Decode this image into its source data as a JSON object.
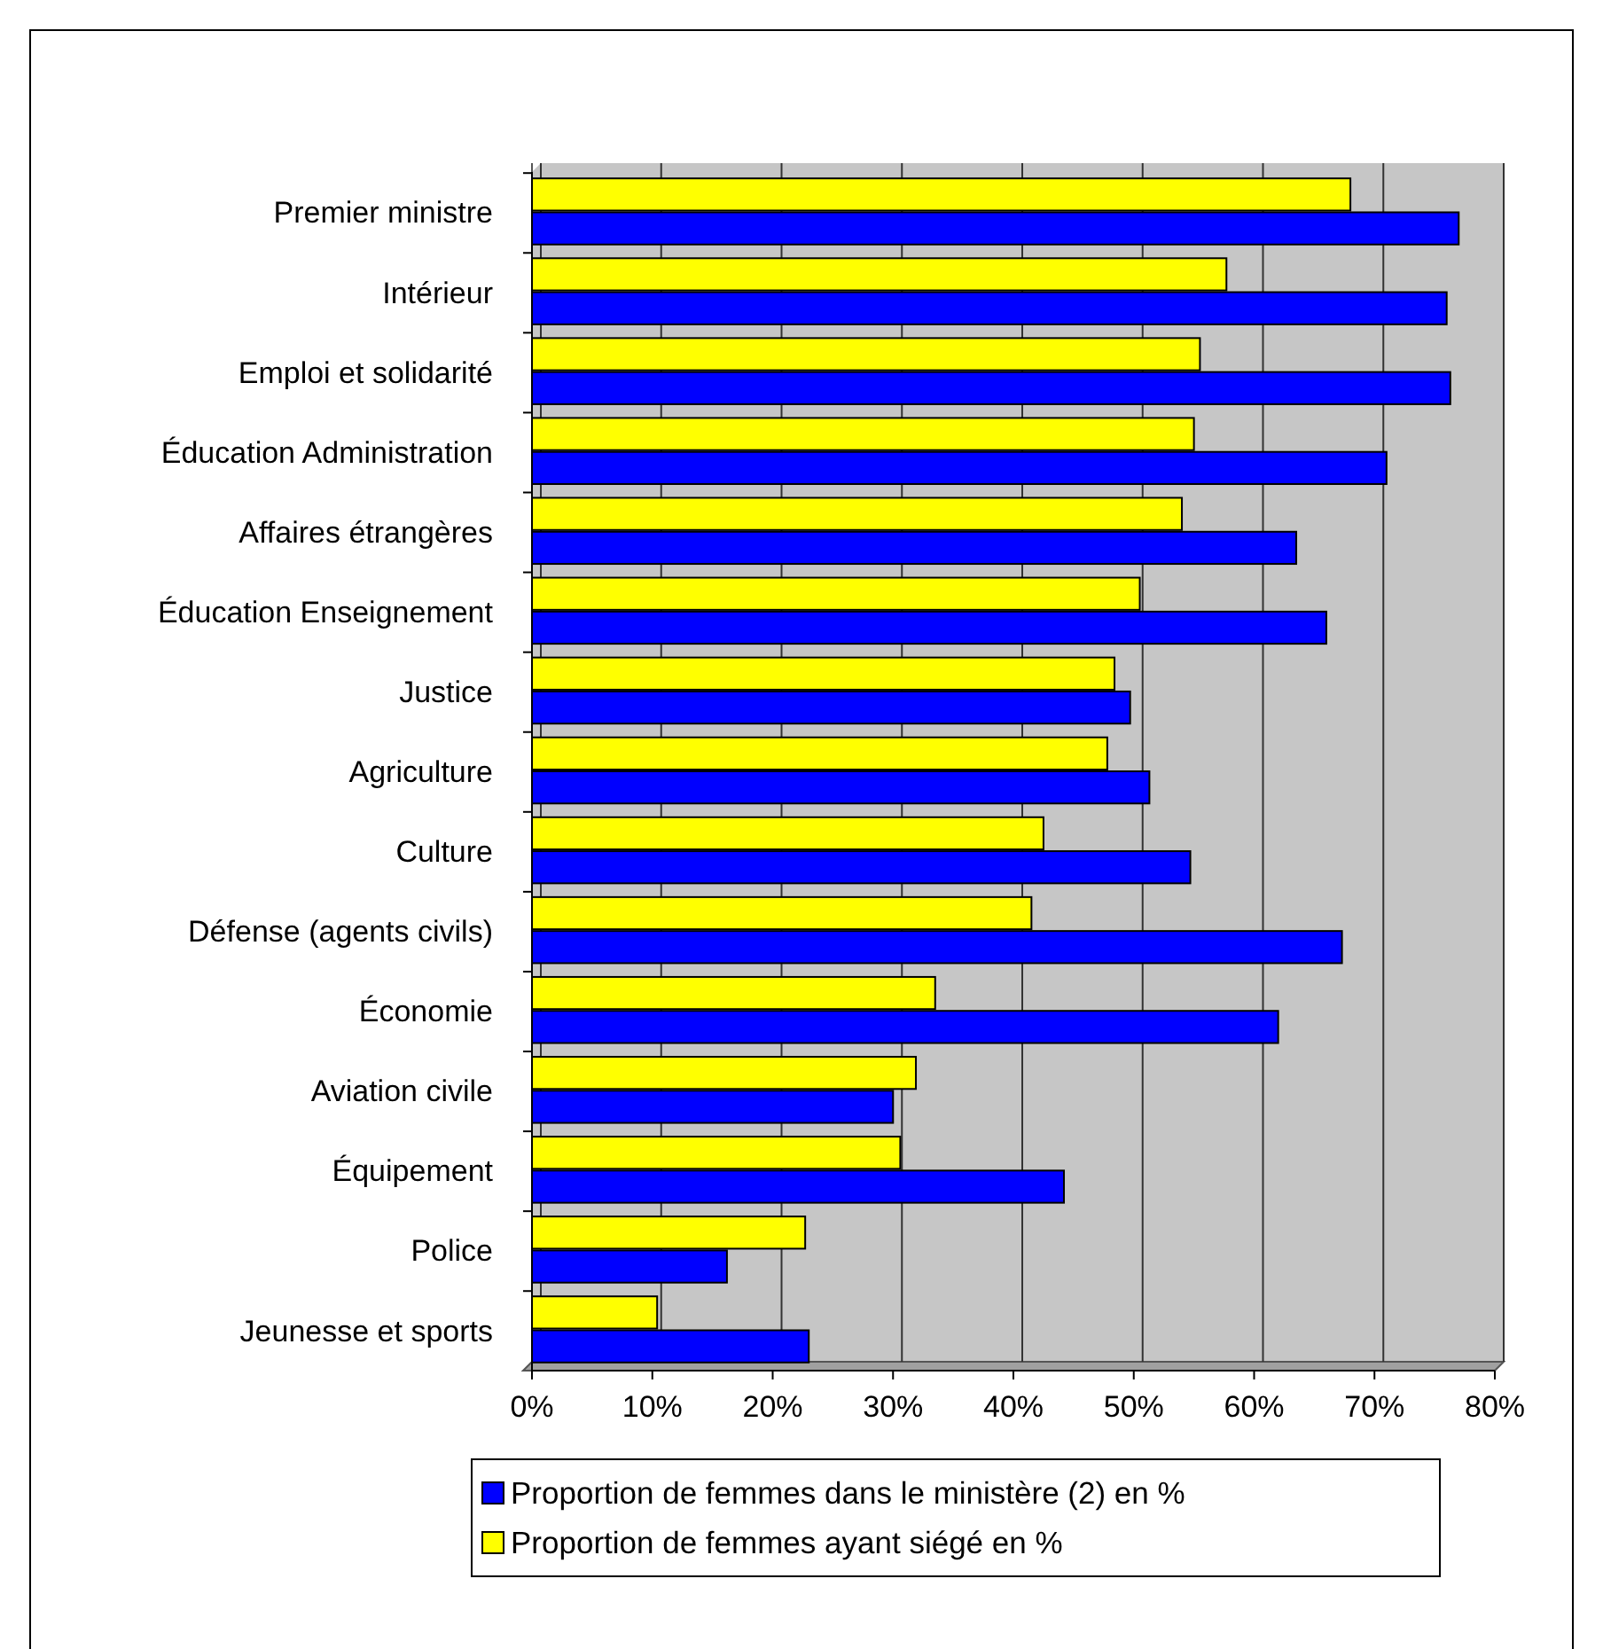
{
  "chart_data": {
    "type": "bar",
    "orientation": "horizontal",
    "categories": [
      "Premier ministre",
      "Intérieur",
      "Emploi et solidarité",
      "Éducation Administration",
      "Affaires étrangères",
      "Éducation Enseignement",
      "Justice",
      "Agriculture",
      "Culture",
      "Défense (agents civils)",
      "Économie",
      "Aviation civile",
      "Équipement",
      "Police",
      "Jeunesse et sports"
    ],
    "series": [
      {
        "name": "Proportion de femmes dans le ministère (2) en %",
        "color": "#0000ff",
        "values": [
          77,
          76,
          76.3,
          71,
          63.5,
          66,
          49.7,
          51.3,
          54.7,
          67.3,
          62,
          30,
          44.2,
          16.2,
          23
        ]
      },
      {
        "name": "Proportion de femmes ayant siégé en %",
        "color": "#ffff00",
        "values": [
          68,
          57.7,
          55.5,
          55,
          54,
          50.5,
          48.4,
          47.8,
          42.5,
          41.5,
          33.5,
          31.9,
          30.6,
          22.7,
          10.4
        ]
      }
    ],
    "xlim": [
      0,
      80
    ],
    "xticks": [
      {
        "value": 0,
        "label": "0%"
      },
      {
        "value": 10,
        "label": "10%"
      },
      {
        "value": 20,
        "label": "20%"
      },
      {
        "value": 30,
        "label": "30%"
      },
      {
        "value": 40,
        "label": "40%"
      },
      {
        "value": 50,
        "label": "50%"
      },
      {
        "value": 60,
        "label": "60%"
      },
      {
        "value": 70,
        "label": "70%"
      },
      {
        "value": 80,
        "label": "80%"
      }
    ],
    "grid": "x",
    "legend": "bottom"
  }
}
